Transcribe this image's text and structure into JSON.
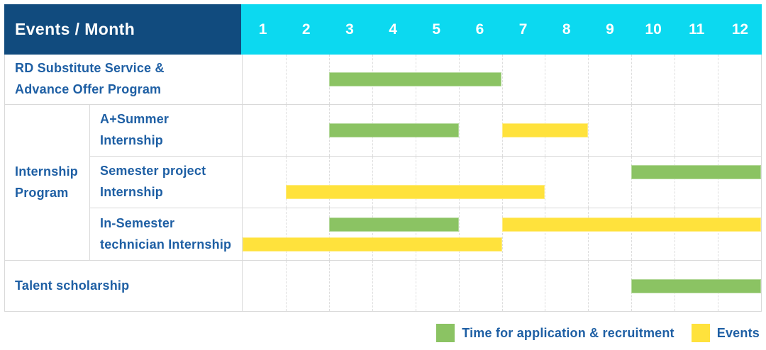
{
  "colors": {
    "header_bg": "#114B7E",
    "months_bg": "#0CD9F0",
    "header_text": "#FFFFFF",
    "label_text": "#1E5FA4",
    "application": "#8BC363",
    "event": "#FFE23C",
    "grid": "#D9D9D9",
    "grid_dashed": "#DDDDDD"
  },
  "chart_data": {
    "type": "gantt",
    "title": "Events / Month",
    "columns": [
      "1",
      "2",
      "3",
      "4",
      "5",
      "6",
      "7",
      "8",
      "9",
      "10",
      "11",
      "12"
    ],
    "xlabel": "Month",
    "rows": [
      {
        "label": "RD Substitute Service &\nAdvance Offer Program",
        "tracks": [
          [
            {
              "type": "application",
              "start": 3,
              "end": 6
            }
          ]
        ]
      },
      {
        "group": "Internship\nProgram",
        "sub": true,
        "label": "A+Summer\nInternship",
        "tracks": [
          [
            {
              "type": "application",
              "start": 3,
              "end": 5
            },
            {
              "type": "event",
              "start": 7,
              "end": 8
            }
          ]
        ]
      },
      {
        "sub": true,
        "label": "Semester project\nInternship",
        "tracks": [
          [
            {
              "type": "application",
              "start": 10,
              "end": 12
            }
          ],
          [
            {
              "type": "event",
              "start": 2,
              "end": 7
            }
          ]
        ]
      },
      {
        "sub": true,
        "label": "In-Semester\ntechnician Internship",
        "tracks": [
          [
            {
              "type": "application",
              "start": 3,
              "end": 5
            },
            {
              "type": "event",
              "start": 7,
              "end": 12
            }
          ],
          [
            {
              "type": "event",
              "start": 1,
              "end": 6
            }
          ]
        ]
      },
      {
        "label": "Talent scholarship",
        "tracks": [
          [
            {
              "type": "application",
              "start": 10,
              "end": 12
            }
          ]
        ]
      }
    ],
    "legend": [
      {
        "type": "application",
        "label": "Time for application & recruitment"
      },
      {
        "type": "event",
        "label": "Events"
      }
    ]
  }
}
